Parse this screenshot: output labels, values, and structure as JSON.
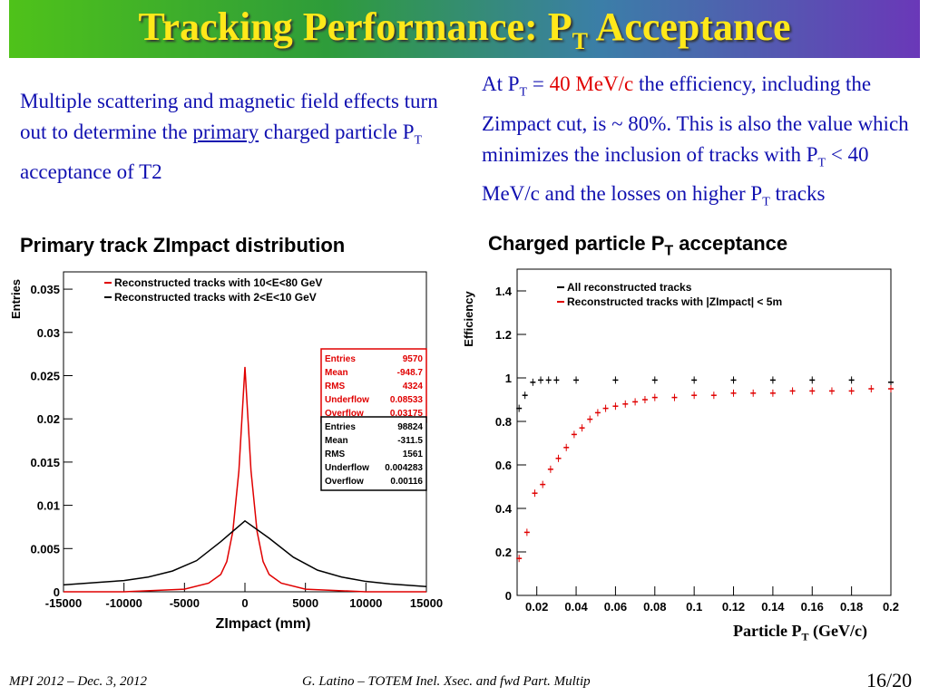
{
  "slide": {
    "title_main": "Tracking Performance: P",
    "title_sub": "T",
    "title_end": " Acceptance",
    "left_text": {
      "line1": "Multiple scattering and magnetic field effects turn out to determine the ",
      "underlined": "primary",
      "line2": " charged particle P",
      "sub": "T",
      "line3": " acceptance of  T2"
    },
    "right_text": {
      "p1": "At P",
      "sub1": "T",
      "p2": " = ",
      "red": "40 MeV/c",
      "p3": " the efficiency, including the Zimpact cut, is ~ 80%. This is also the value which minimizes the inclusion of tracks with P",
      "sub2": "T",
      "p4": " < 40 MeV/c and the losses on higher P",
      "sub3": "T",
      "p5": " tracks"
    },
    "footer_left": "MPI 2012 – Dec. 3, 2012",
    "footer_mid": "G. Latino – TOTEM  Inel. Xsec. and fwd Part. Multip",
    "page": "16/20"
  },
  "chart_data": [
    {
      "type": "line",
      "title": "Primary track ZImpact distribution",
      "xlabel": "ZImpact (mm)",
      "ylabel": "Entries",
      "xlim": [
        -15000,
        15000
      ],
      "ylim": [
        0,
        0.037
      ],
      "xticks": [
        "-15000",
        "-10000",
        "-5000",
        "0",
        "5000",
        "10000",
        "15000"
      ],
      "yticks": [
        "0",
        "0.005",
        "0.01",
        "0.015",
        "0.02",
        "0.025",
        "0.03",
        "0.035"
      ],
      "legend": [
        "Reconstructed tracks with 10<E<80 GeV",
        "Reconstructed tracks with 2<E<10 GeV"
      ],
      "series": [
        {
          "name": "Reconstructed tracks with 10<E<80 GeV",
          "color": "#e00000",
          "x": [
            -15000,
            -10000,
            -5000,
            -3000,
            -2000,
            -1500,
            -1000,
            -500,
            -250,
            0,
            250,
            500,
            1000,
            1500,
            2000,
            3000,
            5000,
            10000,
            15000
          ],
          "y": [
            0,
            0,
            0.0003,
            0.001,
            0.002,
            0.0035,
            0.007,
            0.014,
            0.02,
            0.026,
            0.02,
            0.014,
            0.007,
            0.0035,
            0.002,
            0.001,
            0.0003,
            0,
            0
          ]
        },
        {
          "name": "Reconstructed tracks with 2<E<10 GeV",
          "color": "#000000",
          "x": [
            -15000,
            -12000,
            -10000,
            -8000,
            -6000,
            -4000,
            -2000,
            0,
            2000,
            4000,
            6000,
            8000,
            10000,
            12000,
            15000
          ],
          "y": [
            0.0008,
            0.0011,
            0.0013,
            0.0017,
            0.0024,
            0.0036,
            0.0058,
            0.0082,
            0.0062,
            0.004,
            0.0025,
            0.0017,
            0.0012,
            0.0009,
            0.0006
          ]
        }
      ],
      "stats_red": {
        "Entries": "9570",
        "Mean": "-948.7",
        "RMS": "4324",
        "Underflow": "0.08533",
        "Overflow": "0.03175"
      },
      "stats_black": {
        "Entries": "98824",
        "Mean": "-311.5",
        "RMS": "1561",
        "Underflow": "0.004283",
        "Overflow": "0.00116"
      }
    },
    {
      "type": "scatter",
      "title_main": "Charged particle P",
      "title_sub": "T",
      "title_end": " acceptance",
      "xlabel_main": "Particle P",
      "xlabel_sub": "T",
      "xlabel_end": " (GeV/c)",
      "ylabel": "Efficiency",
      "xlim": [
        0.01,
        0.2
      ],
      "ylim": [
        0,
        1.5
      ],
      "xticks": [
        "0.02",
        "0.04",
        "0.06",
        "0.08",
        "0.1",
        "0.12",
        "0.14",
        "0.16",
        "0.18",
        "0.2"
      ],
      "yticks": [
        "0",
        "0.2",
        "0.4",
        "0.6",
        "0.8",
        "1",
        "1.2",
        "1.4"
      ],
      "legend": [
        "All reconstructed tracks",
        "Reconstructed tracks with |ZImpact| < 5m"
      ],
      "series": [
        {
          "name": "All reconstructed tracks",
          "color": "#000000",
          "x": [
            0.011,
            0.014,
            0.018,
            0.022,
            0.026,
            0.03,
            0.04,
            0.06,
            0.08,
            0.1,
            0.12,
            0.14,
            0.16,
            0.18,
            0.2
          ],
          "y": [
            0.86,
            0.92,
            0.98,
            0.99,
            0.99,
            0.99,
            0.99,
            0.99,
            0.99,
            0.99,
            0.99,
            0.99,
            0.99,
            0.99,
            0.98
          ]
        },
        {
          "name": "Reconstructed tracks with |ZImpact| < 5m",
          "color": "#e00000",
          "x": [
            0.011,
            0.015,
            0.019,
            0.023,
            0.027,
            0.031,
            0.035,
            0.039,
            0.043,
            0.047,
            0.051,
            0.055,
            0.06,
            0.065,
            0.07,
            0.075,
            0.08,
            0.09,
            0.1,
            0.11,
            0.12,
            0.13,
            0.14,
            0.15,
            0.16,
            0.17,
            0.18,
            0.19,
            0.2
          ],
          "y": [
            0.17,
            0.29,
            0.47,
            0.51,
            0.58,
            0.63,
            0.68,
            0.74,
            0.77,
            0.81,
            0.84,
            0.86,
            0.87,
            0.88,
            0.89,
            0.9,
            0.91,
            0.91,
            0.92,
            0.92,
            0.93,
            0.93,
            0.93,
            0.94,
            0.94,
            0.94,
            0.94,
            0.95,
            0.95
          ]
        }
      ]
    }
  ]
}
